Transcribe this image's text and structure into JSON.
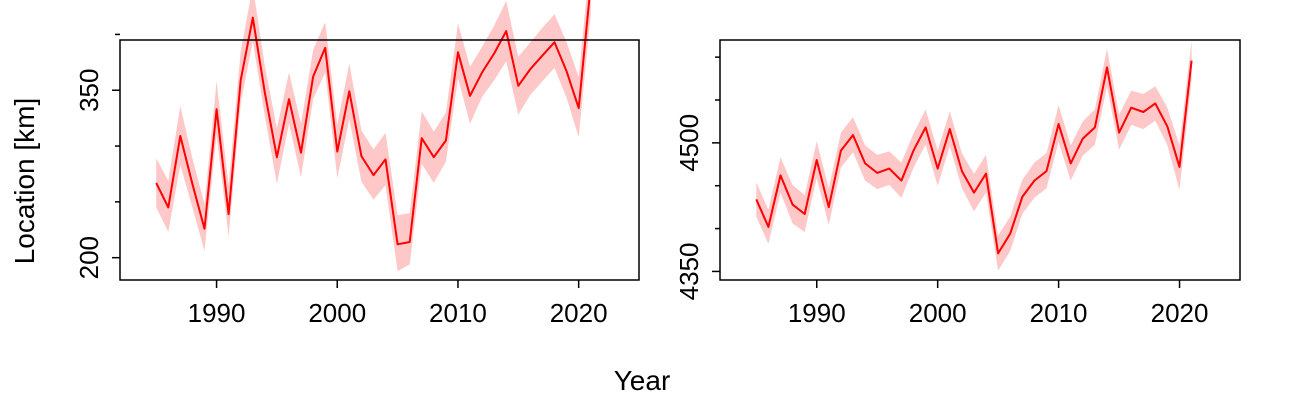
{
  "x_axis_label": "Year",
  "y_axis_label": "Location [km]",
  "chart_data": [
    {
      "type": "line",
      "panel": "left",
      "xlabel": "Year",
      "ylabel": "Location [km]",
      "xlim": [
        1982,
        2025
      ],
      "ylim": [
        180,
        395
      ],
      "xticks": [
        1990,
        2000,
        2010,
        2020
      ],
      "yticks": [
        200,
        350
      ],
      "yminor_ticks": [
        250,
        300,
        400
      ],
      "grid": false,
      "line_color": "#ff0000",
      "band_color": "#ffc8c8",
      "series": [
        {
          "x": [
            1985,
            1986,
            1987,
            1988,
            1989,
            1990,
            1991,
            1992,
            1993,
            1994,
            1995,
            1996,
            1997,
            1998,
            1999,
            2000,
            2001,
            2002,
            2003,
            2004,
            2005,
            2006,
            2007,
            2008,
            2009,
            2010,
            2011,
            2012,
            2013,
            2014,
            2015,
            2016,
            2017,
            2018,
            2019,
            2020,
            2021
          ],
          "y": [
            267,
            245,
            309,
            266,
            226,
            333,
            239,
            359,
            415,
            348,
            290,
            342,
            294,
            362,
            388,
            295,
            349,
            291,
            274,
            288,
            212,
            214,
            307,
            290,
            305,
            384,
            345,
            366,
            383,
            403,
            354,
            369,
            381,
            393,
            367,
            334,
            444
          ],
          "lower": [
            245,
            223,
            283,
            245,
            206,
            310,
            219,
            338,
            394,
            327,
            266,
            320,
            272,
            342,
            366,
            271,
            324,
            268,
            252,
            265,
            188,
            194,
            284,
            267,
            286,
            361,
            320,
            344,
            359,
            376,
            328,
            346,
            358,
            370,
            343,
            308,
            417
          ],
          "upper": [
            289,
            269,
            336,
            289,
            248,
            358,
            265,
            385,
            443,
            372,
            316,
            366,
            320,
            386,
            411,
            319,
            374,
            314,
            297,
            312,
            238,
            240,
            331,
            313,
            330,
            410,
            371,
            389,
            408,
            430,
            380,
            393,
            406,
            418,
            393,
            362,
            472
          ]
        }
      ]
    },
    {
      "type": "line",
      "panel": "right",
      "xlabel": "Year",
      "ylabel": "",
      "xlim": [
        1982,
        2025
      ],
      "ylim": [
        4340,
        4620
      ],
      "xticks": [
        1990,
        2000,
        2010,
        2020
      ],
      "yticks": [
        4350,
        4500
      ],
      "yminor_ticks": [
        4400,
        4450,
        4550,
        4600
      ],
      "grid": false,
      "line_color": "#ff0000",
      "band_color": "#ffc8c8",
      "series": [
        {
          "x": [
            1985,
            1986,
            1987,
            1988,
            1989,
            1990,
            1991,
            1992,
            1993,
            1994,
            1995,
            1996,
            1997,
            1998,
            1999,
            2000,
            2001,
            2002,
            2003,
            2004,
            2005,
            2006,
            2007,
            2008,
            2009,
            2010,
            2011,
            2012,
            2013,
            2014,
            2015,
            2016,
            2017,
            2018,
            2019,
            2020,
            2021
          ],
          "y": [
            4434,
            4402,
            4462,
            4428,
            4417,
            4480,
            4425,
            4491,
            4509,
            4476,
            4465,
            4470,
            4456,
            4491,
            4518,
            4470,
            4516,
            4467,
            4442,
            4464,
            4371,
            4394,
            4437,
            4456,
            4467,
            4522,
            4476,
            4505,
            4518,
            4588,
            4512,
            4541,
            4536,
            4546,
            4519,
            4472,
            4596
          ],
          "lower": [
            4414,
            4382,
            4442,
            4406,
            4396,
            4459,
            4404,
            4471,
            4489,
            4456,
            4446,
            4451,
            4436,
            4471,
            4498,
            4450,
            4496,
            4447,
            4420,
            4442,
            4351,
            4374,
            4417,
            4436,
            4447,
            4501,
            4456,
            4485,
            4498,
            4566,
            4492,
            4521,
            4516,
            4526,
            4497,
            4445,
            4573
          ],
          "upper": [
            4454,
            4422,
            4483,
            4451,
            4439,
            4502,
            4447,
            4512,
            4530,
            4497,
            4486,
            4490,
            4477,
            4511,
            4539,
            4491,
            4537,
            4488,
            4464,
            4486,
            4392,
            4414,
            4457,
            4477,
            4488,
            4544,
            4497,
            4525,
            4539,
            4610,
            4533,
            4561,
            4557,
            4566,
            4541,
            4497,
            4620
          ]
        }
      ]
    }
  ]
}
